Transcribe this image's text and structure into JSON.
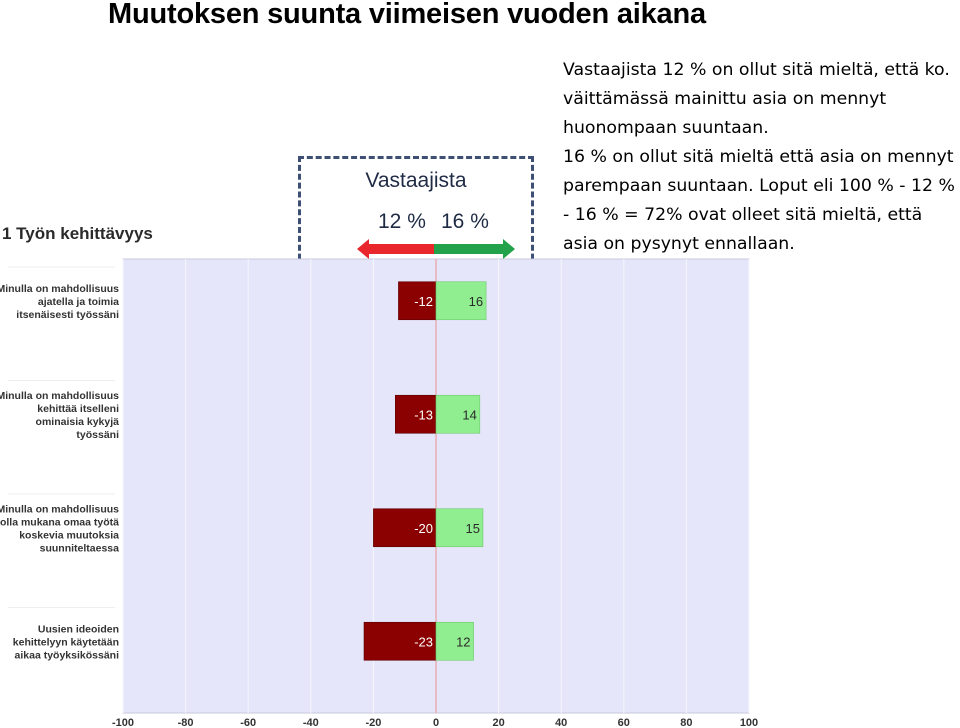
{
  "title": "Muutoksen suunta viimeisen vuoden aikana",
  "explanation": [
    "Vastaajista 12 % on ollut sitä mieltä, että ko. väittämässä mainittu asia on mennyt huonompaan suuntaan.",
    "16 % on ollut sitä mieltä että asia on mennyt parempaan suuntaan. Loput eli 100 % - 12 % - 16 % = 72% ovat olleet sitä mieltä, että asia on pysynyt ennallaan."
  ],
  "legend": {
    "title": "Vastaajista",
    "negative_label": "12 %",
    "positive_label": "16 %"
  },
  "colors": {
    "negative": "#8b0000",
    "positive": "#90ee90",
    "plot_background": "#e6e6fa",
    "arrow_negative": "#e8262b",
    "arrow_positive": "#22a24a"
  },
  "chart_data": {
    "type": "bar",
    "orientation": "horizontal",
    "stacked": "diverging",
    "title": "1 Työn kehittävyys",
    "xlim": [
      -100,
      100
    ],
    "xticks": [
      "-100",
      "-80",
      "-60",
      "-40",
      "-20",
      "0",
      "20",
      "40",
      "60",
      "80",
      "100"
    ],
    "grid": true,
    "categories": [
      [
        "Minulla on mahdollisuus",
        "ajatella ja toimia",
        "itsenäisesti työssäni"
      ],
      [
        "Minulla on mahdollisuus",
        "kehittää itselleni",
        "ominaisia kykyjä",
        "työssäni"
      ],
      [
        "Minulla on mahdollisuus",
        "olla mukana omaa työtä",
        "koskevia muutoksia",
        "suunniteltaessa"
      ],
      [
        "Uusien ideoiden",
        "kehittelyyn käytetään",
        "aikaa työyksikössäni"
      ]
    ],
    "series": [
      {
        "values": [
          -12,
          -13,
          -20,
          -23
        ],
        "labels": [
          "-12",
          "-13",
          "-20",
          "-23"
        ]
      },
      {
        "values": [
          16,
          14,
          15,
          12
        ],
        "labels": [
          "16",
          "14",
          "15",
          "12"
        ]
      }
    ]
  }
}
